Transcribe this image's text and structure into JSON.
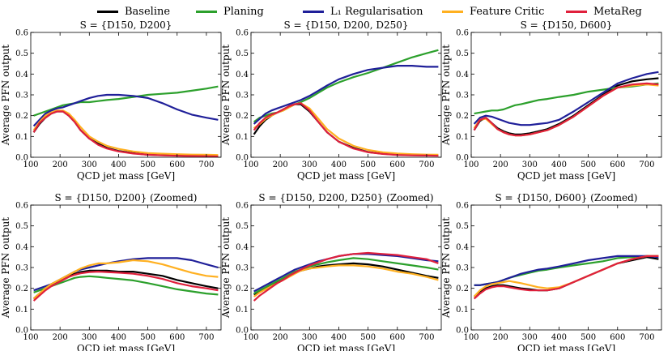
{
  "legend": {
    "items": [
      {
        "name": "Baseline",
        "color": "#000000"
      },
      {
        "name": "Planing",
        "color": "#2ca02c"
      },
      {
        "name": "L₁ Regularisation",
        "color": "#1f1f99"
      },
      {
        "name": "Feature Critic",
        "color": "#ffb020"
      },
      {
        "name": "MetaReg",
        "color": "#e0203c"
      }
    ]
  },
  "chart_data": [
    {
      "type": "line",
      "title": "S = {D150, D200}",
      "xlabel": "QCD jet mass [GeV]",
      "ylabel": "Average PFN output",
      "xlim": [
        100,
        750
      ],
      "ylim": [
        0,
        0.6
      ],
      "xticks": [
        100,
        200,
        300,
        400,
        500,
        600,
        700
      ],
      "yticks": [
        0.0,
        0.1,
        0.2,
        0.3,
        0.4,
        0.5,
        0.6
      ],
      "x": [
        110,
        130,
        150,
        170,
        190,
        210,
        230,
        250,
        270,
        300,
        330,
        360,
        400,
        450,
        500,
        550,
        600,
        650,
        700,
        740
      ],
      "series": [
        {
          "name": "Baseline",
          "values": [
            0.12,
            0.16,
            0.19,
            0.21,
            0.22,
            0.22,
            0.2,
            0.17,
            0.13,
            0.09,
            0.065,
            0.045,
            0.03,
            0.02,
            0.012,
            0.01,
            0.008,
            0.007,
            0.006,
            0.005
          ]
        },
        {
          "name": "Planing",
          "values": [
            0.2,
            0.21,
            0.22,
            0.23,
            0.24,
            0.25,
            0.255,
            0.26,
            0.265,
            0.265,
            0.27,
            0.275,
            0.28,
            0.29,
            0.3,
            0.305,
            0.31,
            0.32,
            0.33,
            0.34
          ]
        },
        {
          "name": "L₁ Regularisation",
          "values": [
            0.15,
            0.18,
            0.21,
            0.225,
            0.235,
            0.24,
            0.25,
            0.26,
            0.27,
            0.285,
            0.295,
            0.3,
            0.3,
            0.295,
            0.285,
            0.26,
            0.23,
            0.205,
            0.19,
            0.18
          ]
        },
        {
          "name": "Feature Critic",
          "values": [
            0.13,
            0.17,
            0.2,
            0.215,
            0.225,
            0.225,
            0.21,
            0.18,
            0.145,
            0.1,
            0.075,
            0.055,
            0.04,
            0.028,
            0.02,
            0.017,
            0.015,
            0.013,
            0.012,
            0.011
          ]
        },
        {
          "name": "MetaReg",
          "values": [
            0.12,
            0.165,
            0.19,
            0.21,
            0.22,
            0.22,
            0.2,
            0.17,
            0.13,
            0.09,
            0.06,
            0.042,
            0.028,
            0.018,
            0.012,
            0.009,
            0.007,
            0.006,
            0.005,
            0.004
          ]
        }
      ]
    },
    {
      "type": "line",
      "title": "S = {D150, D200, D250}",
      "xlabel": "QCD jet mass [GeV]",
      "ylabel": "Average PFN output",
      "xlim": [
        100,
        750
      ],
      "ylim": [
        0,
        0.6
      ],
      "xticks": [
        100,
        200,
        300,
        400,
        500,
        600,
        700
      ],
      "yticks": [
        0.0,
        0.1,
        0.2,
        0.3,
        0.4,
        0.5,
        0.6
      ],
      "x": [
        110,
        130,
        150,
        170,
        190,
        210,
        230,
        250,
        270,
        300,
        330,
        360,
        400,
        450,
        500,
        550,
        600,
        650,
        700,
        740
      ],
      "series": [
        {
          "name": "Baseline",
          "values": [
            0.11,
            0.15,
            0.18,
            0.2,
            0.215,
            0.23,
            0.245,
            0.255,
            0.255,
            0.22,
            0.17,
            0.12,
            0.075,
            0.045,
            0.025,
            0.017,
            0.012,
            0.01,
            0.009,
            0.008
          ]
        },
        {
          "name": "Planing",
          "values": [
            0.17,
            0.19,
            0.2,
            0.21,
            0.215,
            0.225,
            0.24,
            0.255,
            0.265,
            0.285,
            0.31,
            0.335,
            0.36,
            0.385,
            0.405,
            0.43,
            0.455,
            0.48,
            0.5,
            0.515
          ]
        },
        {
          "name": "L₁ Regularisation",
          "values": [
            0.16,
            0.185,
            0.21,
            0.225,
            0.235,
            0.245,
            0.255,
            0.265,
            0.275,
            0.295,
            0.32,
            0.345,
            0.375,
            0.4,
            0.42,
            0.43,
            0.44,
            0.44,
            0.435,
            0.435
          ]
        },
        {
          "name": "Feature Critic",
          "values": [
            0.14,
            0.16,
            0.185,
            0.2,
            0.215,
            0.225,
            0.24,
            0.255,
            0.26,
            0.235,
            0.185,
            0.135,
            0.09,
            0.055,
            0.035,
            0.024,
            0.018,
            0.015,
            0.013,
            0.012
          ]
        },
        {
          "name": "MetaReg",
          "values": [
            0.13,
            0.165,
            0.19,
            0.205,
            0.215,
            0.23,
            0.245,
            0.255,
            0.26,
            0.225,
            0.17,
            0.12,
            0.075,
            0.042,
            0.024,
            0.016,
            0.011,
            0.009,
            0.008,
            0.007
          ]
        }
      ]
    },
    {
      "type": "line",
      "title": "S = {D150, D600}",
      "xlabel": "QCD jet mass [GeV]",
      "ylabel": "Average PFN output",
      "xlim": [
        100,
        750
      ],
      "ylim": [
        0,
        0.6
      ],
      "xticks": [
        100,
        200,
        300,
        400,
        500,
        600,
        700
      ],
      "yticks": [
        0.0,
        0.1,
        0.2,
        0.3,
        0.4,
        0.5,
        0.6
      ],
      "x": [
        110,
        130,
        150,
        170,
        190,
        210,
        230,
        250,
        270,
        300,
        330,
        360,
        400,
        450,
        500,
        550,
        600,
        650,
        700,
        740
      ],
      "series": [
        {
          "name": "Baseline",
          "values": [
            0.13,
            0.175,
            0.19,
            0.165,
            0.14,
            0.125,
            0.115,
            0.11,
            0.11,
            0.115,
            0.125,
            0.135,
            0.16,
            0.2,
            0.25,
            0.3,
            0.345,
            0.365,
            0.375,
            0.38
          ]
        },
        {
          "name": "Planing",
          "values": [
            0.21,
            0.215,
            0.22,
            0.225,
            0.225,
            0.23,
            0.24,
            0.25,
            0.255,
            0.265,
            0.275,
            0.28,
            0.29,
            0.3,
            0.315,
            0.325,
            0.335,
            0.34,
            0.35,
            0.355
          ]
        },
        {
          "name": "L₁ Regularisation",
          "values": [
            0.16,
            0.19,
            0.2,
            0.195,
            0.185,
            0.175,
            0.165,
            0.16,
            0.155,
            0.155,
            0.16,
            0.165,
            0.18,
            0.22,
            0.265,
            0.31,
            0.355,
            0.38,
            0.4,
            0.41
          ]
        },
        {
          "name": "Feature Critic",
          "values": [
            0.14,
            0.18,
            0.185,
            0.16,
            0.135,
            0.12,
            0.11,
            0.105,
            0.105,
            0.11,
            0.12,
            0.13,
            0.155,
            0.195,
            0.245,
            0.295,
            0.335,
            0.345,
            0.35,
            0.345
          ]
        },
        {
          "name": "MetaReg",
          "values": [
            0.13,
            0.18,
            0.19,
            0.165,
            0.135,
            0.12,
            0.11,
            0.105,
            0.105,
            0.11,
            0.12,
            0.13,
            0.155,
            0.195,
            0.245,
            0.295,
            0.335,
            0.35,
            0.355,
            0.35
          ]
        }
      ]
    },
    {
      "type": "line",
      "title": "S = {D150, D200} (Zoomed)",
      "xlabel": "QCD jet mass [GeV]",
      "ylabel": "Average PFN output",
      "xlim": [
        100,
        750
      ],
      "ylim": [
        0,
        0.6
      ],
      "xticks": [
        100,
        200,
        300,
        400,
        500,
        600,
        700
      ],
      "yticks": [
        0.0,
        0.1,
        0.2,
        0.3,
        0.4,
        0.5,
        0.6
      ],
      "x": [
        110,
        130,
        150,
        170,
        190,
        210,
        230,
        250,
        270,
        300,
        330,
        360,
        400,
        450,
        500,
        550,
        600,
        650,
        700,
        740
      ],
      "series": [
        {
          "name": "Baseline",
          "values": [
            0.15,
            0.175,
            0.2,
            0.215,
            0.23,
            0.245,
            0.26,
            0.27,
            0.278,
            0.285,
            0.285,
            0.285,
            0.28,
            0.28,
            0.27,
            0.26,
            0.24,
            0.225,
            0.21,
            0.2
          ]
        },
        {
          "name": "Planing",
          "values": [
            0.18,
            0.19,
            0.2,
            0.21,
            0.22,
            0.23,
            0.24,
            0.25,
            0.255,
            0.258,
            0.255,
            0.25,
            0.245,
            0.238,
            0.225,
            0.21,
            0.195,
            0.185,
            0.175,
            0.17
          ]
        },
        {
          "name": "L₁ Regularisation",
          "values": [
            0.19,
            0.2,
            0.21,
            0.22,
            0.235,
            0.25,
            0.265,
            0.28,
            0.29,
            0.3,
            0.31,
            0.32,
            0.33,
            0.34,
            0.345,
            0.345,
            0.345,
            0.335,
            0.315,
            0.3
          ]
        },
        {
          "name": "Feature Critic",
          "values": [
            0.15,
            0.175,
            0.2,
            0.22,
            0.235,
            0.25,
            0.265,
            0.28,
            0.295,
            0.31,
            0.32,
            0.32,
            0.325,
            0.335,
            0.33,
            0.315,
            0.295,
            0.275,
            0.26,
            0.255
          ]
        },
        {
          "name": "MetaReg",
          "values": [
            0.14,
            0.165,
            0.19,
            0.21,
            0.225,
            0.24,
            0.255,
            0.265,
            0.272,
            0.278,
            0.28,
            0.278,
            0.275,
            0.27,
            0.26,
            0.245,
            0.225,
            0.21,
            0.2,
            0.19
          ]
        }
      ]
    },
    {
      "type": "line",
      "title": "S = {D150, D200, D250} (Zoomed)",
      "xlabel": "QCD jet mass [GeV]",
      "ylabel": "Average PFN output",
      "xlim": [
        100,
        750
      ],
      "ylim": [
        0,
        0.6
      ],
      "xticks": [
        100,
        200,
        300,
        400,
        500,
        600,
        700
      ],
      "yticks": [
        0.0,
        0.1,
        0.2,
        0.3,
        0.4,
        0.5,
        0.6
      ],
      "x": [
        110,
        130,
        150,
        170,
        190,
        210,
        230,
        250,
        270,
        300,
        330,
        360,
        400,
        450,
        500,
        550,
        600,
        650,
        700,
        740
      ],
      "series": [
        {
          "name": "Baseline",
          "values": [
            0.17,
            0.185,
            0.2,
            0.215,
            0.23,
            0.245,
            0.26,
            0.275,
            0.285,
            0.295,
            0.305,
            0.31,
            0.315,
            0.32,
            0.315,
            0.305,
            0.29,
            0.275,
            0.26,
            0.25
          ]
        },
        {
          "name": "Planing",
          "values": [
            0.175,
            0.19,
            0.205,
            0.22,
            0.235,
            0.25,
            0.265,
            0.28,
            0.29,
            0.305,
            0.315,
            0.325,
            0.335,
            0.345,
            0.34,
            0.33,
            0.32,
            0.31,
            0.3,
            0.29
          ]
        },
        {
          "name": "L₁ Regularisation",
          "values": [
            0.185,
            0.2,
            0.215,
            0.23,
            0.245,
            0.26,
            0.275,
            0.29,
            0.3,
            0.315,
            0.33,
            0.34,
            0.355,
            0.365,
            0.365,
            0.36,
            0.355,
            0.345,
            0.335,
            0.33
          ]
        },
        {
          "name": "Feature Critic",
          "values": [
            0.16,
            0.18,
            0.195,
            0.21,
            0.225,
            0.24,
            0.255,
            0.27,
            0.285,
            0.295,
            0.3,
            0.305,
            0.31,
            0.31,
            0.305,
            0.295,
            0.28,
            0.27,
            0.255,
            0.24
          ]
        },
        {
          "name": "MetaReg",
          "values": [
            0.14,
            0.165,
            0.185,
            0.205,
            0.225,
            0.24,
            0.26,
            0.275,
            0.29,
            0.31,
            0.325,
            0.34,
            0.355,
            0.365,
            0.37,
            0.365,
            0.36,
            0.35,
            0.34,
            0.32
          ]
        }
      ]
    },
    {
      "type": "line",
      "title": "S = {D150, D600} (Zoomed)",
      "xlabel": "QCD jet mass [GeV]",
      "ylabel": "Average PFN output",
      "xlim": [
        100,
        750
      ],
      "ylim": [
        0,
        0.6
      ],
      "xticks": [
        100,
        200,
        300,
        400,
        500,
        600,
        700
      ],
      "yticks": [
        0.0,
        0.1,
        0.2,
        0.3,
        0.4,
        0.5,
        0.6
      ],
      "x": [
        110,
        130,
        150,
        170,
        190,
        210,
        230,
        250,
        270,
        300,
        330,
        360,
        400,
        450,
        500,
        550,
        600,
        650,
        700,
        740
      ],
      "series": [
        {
          "name": "Baseline",
          "values": [
            0.16,
            0.185,
            0.2,
            0.21,
            0.215,
            0.215,
            0.21,
            0.205,
            0.2,
            0.195,
            0.19,
            0.19,
            0.2,
            0.23,
            0.26,
            0.29,
            0.32,
            0.335,
            0.35,
            0.34
          ]
        },
        {
          "name": "Planing",
          "values": [
            0.215,
            0.215,
            0.22,
            0.225,
            0.23,
            0.24,
            0.25,
            0.258,
            0.265,
            0.275,
            0.285,
            0.29,
            0.3,
            0.31,
            0.32,
            0.33,
            0.345,
            0.35,
            0.355,
            0.355
          ]
        },
        {
          "name": "L₁ Regularisation",
          "values": [
            0.215,
            0.215,
            0.22,
            0.225,
            0.23,
            0.24,
            0.25,
            0.26,
            0.27,
            0.28,
            0.29,
            0.295,
            0.305,
            0.32,
            0.335,
            0.345,
            0.355,
            0.355,
            0.355,
            0.35
          ]
        },
        {
          "name": "Feature Critic",
          "values": [
            0.16,
            0.19,
            0.21,
            0.22,
            0.225,
            0.23,
            0.235,
            0.23,
            0.225,
            0.215,
            0.205,
            0.2,
            0.205,
            0.23,
            0.26,
            0.29,
            0.32,
            0.34,
            0.355,
            0.355
          ]
        },
        {
          "name": "MetaReg",
          "values": [
            0.15,
            0.175,
            0.195,
            0.205,
            0.21,
            0.21,
            0.205,
            0.2,
            0.195,
            0.19,
            0.19,
            0.19,
            0.2,
            0.23,
            0.26,
            0.29,
            0.32,
            0.34,
            0.355,
            0.355
          ]
        }
      ]
    }
  ]
}
